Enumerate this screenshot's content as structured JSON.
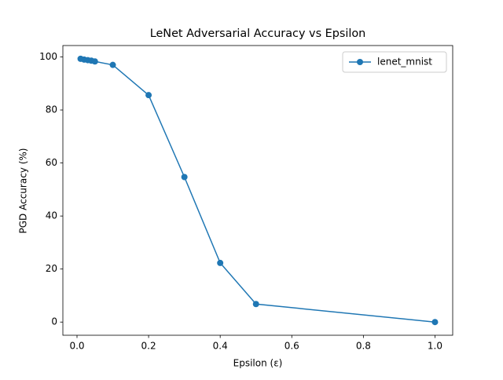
{
  "chart_data": {
    "type": "line",
    "title": "LeNet Adversarial Accuracy vs Epsilon",
    "xlabel": "Epsilon (ε)",
    "ylabel": "PGD Accuracy (%)",
    "x": [
      0.01,
      0.02,
      0.03,
      0.04,
      0.05,
      0.1,
      0.2,
      0.3,
      0.4,
      0.5,
      1.0
    ],
    "series": [
      {
        "name": "lenet_mnist",
        "color": "#1f77b4",
        "values": [
          99.3,
          99.0,
          98.8,
          98.6,
          98.3,
          97.0,
          85.6,
          54.7,
          22.3,
          6.8,
          0.0
        ]
      }
    ],
    "xlim": [
      -0.0395,
      1.0495
    ],
    "xticks": [
      {
        "value": 0,
        "label": "0.0"
      },
      {
        "value": 0.2,
        "label": "0.2"
      },
      {
        "value": 0.4,
        "label": "0.4"
      },
      {
        "value": 0.6,
        "label": "0.6"
      },
      {
        "value": 0.8,
        "label": "0.8"
      },
      {
        "value": 1,
        "label": "1.0"
      }
    ],
    "ylim": [
      -4.97,
      104.3
    ],
    "yticks": [
      0,
      20,
      40,
      60,
      80,
      100
    ],
    "grid": false,
    "legend": "upper right",
    "marker": "circle"
  }
}
